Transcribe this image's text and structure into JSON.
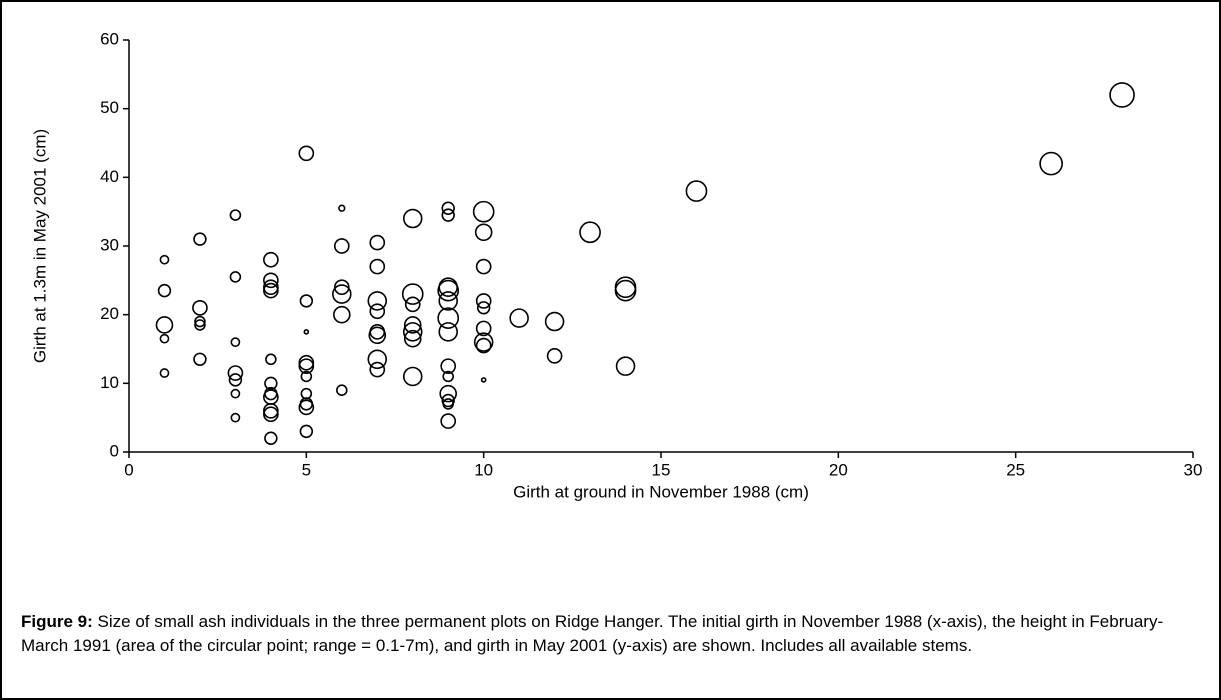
{
  "chart_data": {
    "type": "bubble",
    "xlabel": "Girth at ground in November 1988 (cm)",
    "ylabel": "Girth at 1.3m in May 2001 (cm)",
    "xlim": [
      0,
      30
    ],
    "xticks": [
      0,
      5,
      10,
      15,
      20,
      25,
      30
    ],
    "ylim": [
      0,
      60
    ],
    "yticks": [
      0,
      10,
      20,
      30,
      40,
      50,
      60
    ],
    "marker_color": "#000000",
    "series": [
      {
        "x": [
          1,
          1,
          1,
          1,
          1,
          2,
          2,
          2,
          2,
          2,
          3,
          3,
          3,
          3,
          3,
          3,
          3,
          4,
          4,
          4,
          4,
          4,
          4,
          4,
          4,
          4,
          4,
          4,
          5,
          5,
          5,
          5,
          5,
          5,
          5,
          5,
          5,
          5,
          6,
          6,
          6,
          6,
          6,
          6,
          7,
          7,
          7,
          7,
          7,
          7,
          7,
          7,
          8,
          8,
          8,
          8,
          8,
          8,
          8,
          9,
          9,
          9,
          9,
          9,
          9,
          9,
          9,
          9,
          9,
          9,
          9,
          9,
          10,
          10,
          10,
          10,
          10,
          10,
          10,
          10,
          10,
          11,
          12,
          12,
          13,
          14,
          14,
          14,
          16,
          26,
          28
        ],
        "values": [
          28,
          23.5,
          18.5,
          16.5,
          11.5,
          31,
          21,
          19,
          18.5,
          13.5,
          34.5,
          25.5,
          16,
          11.5,
          10.5,
          8.5,
          5,
          28,
          25,
          24,
          23.5,
          13.5,
          10,
          8.5,
          8,
          6,
          5.5,
          2,
          43.5,
          22,
          17.5,
          13,
          12.5,
          11,
          8.5,
          7,
          6.5,
          3,
          35.5,
          30,
          24,
          23,
          20,
          9,
          30.5,
          27,
          22,
          20.5,
          17.5,
          17,
          13.5,
          12,
          34,
          23,
          21.5,
          18.5,
          17.5,
          16.5,
          11,
          35.5,
          34.5,
          24,
          23.5,
          22,
          19.5,
          17.5,
          12.5,
          11,
          8.5,
          7.5,
          7,
          4.5,
          35,
          32,
          27,
          22,
          21,
          18,
          16,
          15.5,
          10.5,
          19.5,
          19,
          14,
          32,
          24,
          23.5,
          12.5,
          38,
          42,
          52
        ],
        "sizes": [
          0.8,
          1.7,
          3.1,
          0.8,
          0.8,
          1.7,
          2.4,
          1.2,
          1.2,
          1.7,
          1.2,
          1.2,
          0.8,
          2.4,
          1.7,
          0.8,
          0.8,
          2.4,
          2.4,
          2.4,
          2.4,
          1.2,
          1.7,
          1.7,
          2.4,
          2.4,
          2.4,
          1.7,
          2.4,
          1.7,
          0.2,
          2.4,
          2.4,
          1.2,
          1.2,
          1.7,
          2.4,
          1.7,
          0.4,
          2.4,
          2.4,
          3.9,
          3.1,
          1.2,
          2.4,
          2.4,
          3.9,
          2.4,
          2.4,
          3.1,
          3.9,
          2.4,
          3.9,
          4.9,
          2.4,
          3.1,
          3.9,
          3.1,
          3.9,
          1.7,
          1.7,
          3.9,
          4.9,
          3.9,
          4.9,
          3.9,
          2.4,
          1.2,
          3.1,
          1.7,
          1.2,
          2.4,
          4.9,
          3.1,
          2.4,
          2.4,
          1.7,
          2.4,
          3.9,
          2.4,
          0.2,
          3.9,
          3.9,
          2.4,
          4.9,
          4.9,
          4.9,
          3.9,
          4.9,
          5.9,
          7
        ]
      }
    ],
    "caption_label": "Figure 9:",
    "caption_text": "Size of small ash individuals in the three permanent plots on Ridge Hanger. The initial girth in November 1988 (x-axis), the height in February-March 1991 (area of the circular point; range = 0.1-7m), and girth in May 2001 (y-axis) are shown. Includes all available stems."
  }
}
